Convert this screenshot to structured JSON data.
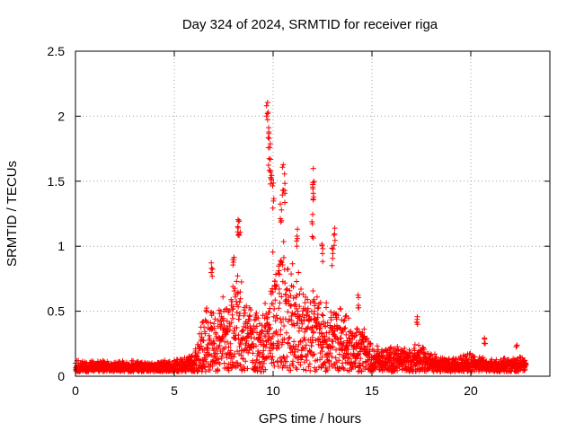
{
  "chart_data": {
    "type": "scatter",
    "title": "Day 324 of 2024, SRMTID for receiver riga",
    "xlabel": "GPS time / hours",
    "ylabel": "SRMTID / TECUs",
    "xlim": [
      0,
      24
    ],
    "ylim": [
      0,
      2.5
    ],
    "xticks": [
      0,
      5,
      10,
      15,
      20
    ],
    "xtick_labels": [
      "0",
      "5",
      "10",
      "15",
      "20"
    ],
    "yticks": [
      0,
      0.5,
      1,
      1.5,
      2,
      2.5
    ],
    "ytick_labels": [
      "0",
      "0.5",
      "1",
      "1.5",
      "2",
      "2.5"
    ],
    "grid": true,
    "marker": "+",
    "colors": {
      "series": "#ff0000",
      "grid": "#a0a0a0",
      "axis": "#000000"
    },
    "series": [
      {
        "name": "SRMTID",
        "envelope": [
          [
            0.0,
            0.09
          ],
          [
            1.0,
            0.09
          ],
          [
            2.0,
            0.09
          ],
          [
            3.0,
            0.09
          ],
          [
            4.0,
            0.09
          ],
          [
            5.0,
            0.1
          ],
          [
            5.8,
            0.13
          ],
          [
            6.2,
            0.28
          ],
          [
            6.5,
            0.5
          ],
          [
            7.0,
            0.58
          ],
          [
            7.5,
            0.6
          ],
          [
            8.0,
            0.72
          ],
          [
            8.3,
            0.85
          ],
          [
            8.7,
            0.58
          ],
          [
            9.0,
            0.5
          ],
          [
            9.5,
            0.55
          ],
          [
            9.8,
            0.85
          ],
          [
            10.0,
            1.0
          ],
          [
            10.5,
            1.1
          ],
          [
            11.0,
            0.85
          ],
          [
            11.5,
            0.75
          ],
          [
            12.0,
            0.82
          ],
          [
            12.5,
            0.65
          ],
          [
            13.0,
            0.6
          ],
          [
            13.5,
            0.5
          ],
          [
            14.0,
            0.45
          ],
          [
            14.5,
            0.38
          ],
          [
            15.0,
            0.22
          ],
          [
            15.5,
            0.2
          ],
          [
            16.0,
            0.22
          ],
          [
            16.5,
            0.2
          ],
          [
            17.0,
            0.2
          ],
          [
            17.5,
            0.24
          ],
          [
            18.0,
            0.16
          ],
          [
            18.5,
            0.13
          ],
          [
            19.0,
            0.12
          ],
          [
            19.5,
            0.13
          ],
          [
            20.0,
            0.15
          ],
          [
            20.5,
            0.13
          ],
          [
            21.0,
            0.11
          ],
          [
            21.5,
            0.1
          ],
          [
            22.0,
            0.11
          ],
          [
            22.5,
            0.12
          ],
          [
            22.8,
            0.1
          ]
        ],
        "spikes": [
          [
            6.9,
            0.9
          ],
          [
            8.0,
            1.0
          ],
          [
            8.2,
            1.25
          ],
          [
            8.3,
            1.28
          ],
          [
            9.7,
            2.23
          ],
          [
            9.75,
            2.12
          ],
          [
            9.8,
            1.9
          ],
          [
            9.85,
            1.8
          ],
          [
            9.9,
            1.6
          ],
          [
            10.0,
            1.55
          ],
          [
            10.5,
            1.68
          ],
          [
            10.6,
            1.6
          ],
          [
            10.4,
            1.38
          ],
          [
            11.2,
            1.15
          ],
          [
            12.0,
            1.62
          ],
          [
            12.05,
            1.55
          ],
          [
            12.0,
            1.25
          ],
          [
            12.5,
            1.05
          ],
          [
            13.1,
            1.18
          ],
          [
            13.0,
            1.02
          ],
          [
            14.3,
            0.64
          ],
          [
            17.3,
            0.46
          ],
          [
            20.7,
            0.3
          ],
          [
            22.3,
            0.26
          ]
        ]
      }
    ]
  }
}
